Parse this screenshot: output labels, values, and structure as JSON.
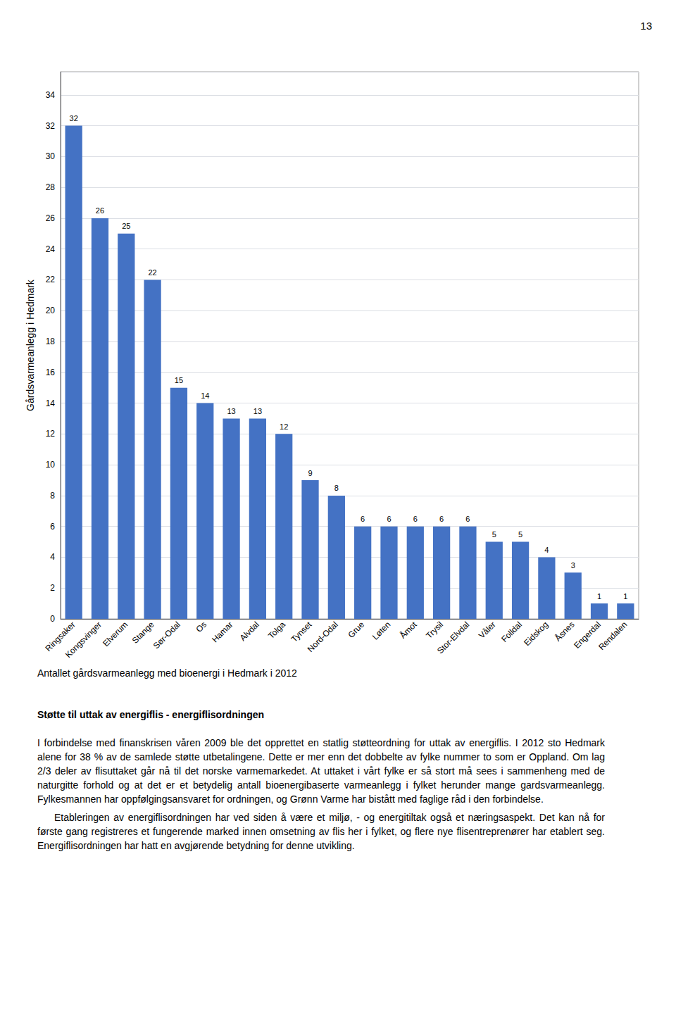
{
  "chart_data": {
    "type": "bar",
    "categories": [
      "Ringsaker",
      "Kongsvinger",
      "Elverum",
      "Stange",
      "Sør-Odal",
      "Os",
      "Hamar",
      "Alvdal",
      "Tolga",
      "Tynset",
      "Nord-Odal",
      "Grue",
      "Løten",
      "Åmot",
      "Trysil",
      "Stor-Elvdal",
      "Våler",
      "Folldal",
      "Eidskog",
      "Åsnes",
      "Engerdal",
      "Rendalen"
    ],
    "values": [
      32,
      26,
      25,
      22,
      15,
      14,
      13,
      13,
      12,
      9,
      8,
      6,
      6,
      6,
      6,
      6,
      5,
      5,
      4,
      3,
      1,
      1
    ],
    "color": "#4472C4",
    "ylabel": "Gårdsvarmeanlegg i Hedmark",
    "ylim": [
      0,
      35.5
    ],
    "yticks": [
      0,
      2,
      4,
      6,
      8,
      10,
      12,
      14,
      16,
      18,
      20,
      22,
      24,
      26,
      28,
      30,
      32,
      34
    ],
    "grid": true,
    "data_labels": true,
    "caption": "Antallet gårdsvarmeanlegg med bioenergi i Hedmark i 2012",
    "page_number": "13",
    "section_title": "Støtte til uttak av energiflis - energiflisordningen",
    "paragraphs": [
      "I forbindelse med finanskrisen våren 2009 ble det opprettet en statlig støtteordning for uttak av energiflis. I 2012 sto Hedmark alene for 38 % av de samlede støtte utbetalingene. Dette er mer enn det dobbelte av fylke nummer to som er Oppland. Om lag 2/3 deler av flisuttaket går nå til det norske varmemarkedet. At uttaket i vårt fylke er så stort må sees i sammenheng med de naturgitte forhold og at det er et betydelig antall bioenergibaserte varmeanlegg i fylket herunder mange gardsvarmeanlegg. Fylkesmannen har oppfølgingsansvaret for ordningen, og Grønn Varme har bistått med faglige råd i den forbindelse.",
      "Etableringen av energiflisordningen har ved siden å være et miljø, - og energitiltak også et næringsaspekt. Det kan nå for første gang registreres et fungerende marked innen omsetning av flis her i fylket, og flere nye flisentreprenører har etablert seg. Energiflisordningen har hatt en avgjørende betydning for denne utvikling."
    ]
  }
}
